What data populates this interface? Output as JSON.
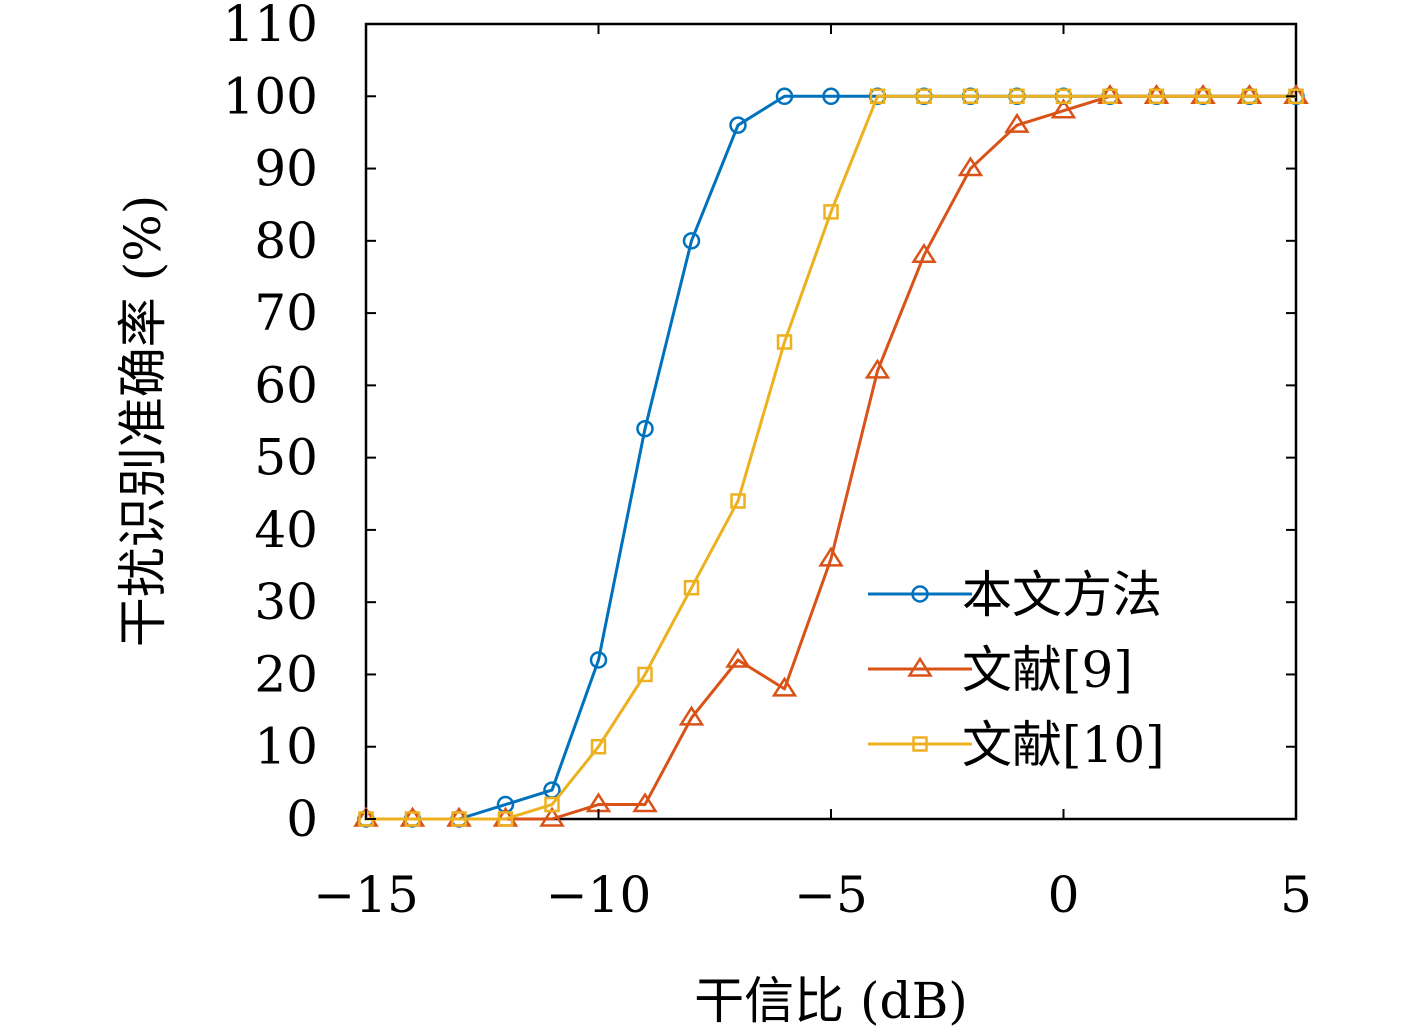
{
  "chart_data": {
    "type": "line",
    "title": "",
    "xlabel": "干信比 (dB)",
    "ylabel": "干扰识别准确率 (%)",
    "xlim": [
      -15,
      5
    ],
    "ylim": [
      0,
      110
    ],
    "xticks": [
      -15,
      -10,
      -5,
      0,
      5
    ],
    "xtick_labels": [
      "−15",
      "−10",
      "−5",
      "0",
      "5"
    ],
    "yticks": [
      0,
      10,
      20,
      30,
      40,
      50,
      60,
      70,
      80,
      90,
      100,
      110
    ],
    "ytick_labels": [
      "0",
      "10",
      "20",
      "30",
      "40",
      "50",
      "60",
      "70",
      "80",
      "90",
      "100",
      "110"
    ],
    "grid": false,
    "legend_position": "bottom-right",
    "x": [
      -15,
      -14,
      -13,
      -12,
      -11,
      -10,
      -9,
      -8,
      -7,
      -6,
      -5,
      -4,
      -3,
      -2,
      -1,
      0,
      1,
      2,
      3,
      4,
      5
    ],
    "series": [
      {
        "name": "本文方法",
        "color": "#0072BD",
        "marker": "circle",
        "values": [
          0,
          0,
          0,
          2,
          4,
          22,
          54,
          80,
          96,
          100,
          100,
          100,
          100,
          100,
          100,
          100,
          100,
          100,
          100,
          100,
          100
        ]
      },
      {
        "name": "文献[9]",
        "color": "#D95319",
        "marker": "triangle",
        "values": [
          0,
          0,
          0,
          0,
          0,
          2,
          2,
          14,
          22,
          18,
          36,
          62,
          78,
          90,
          96,
          98,
          100,
          100,
          100,
          100,
          100
        ]
      },
      {
        "name": "文献[10]",
        "color": "#EDB120",
        "marker": "square",
        "values": [
          0,
          0,
          0,
          0,
          2,
          10,
          20,
          32,
          44,
          66,
          84,
          100,
          100,
          100,
          100,
          100,
          100,
          100,
          100,
          100,
          100
        ]
      }
    ]
  }
}
